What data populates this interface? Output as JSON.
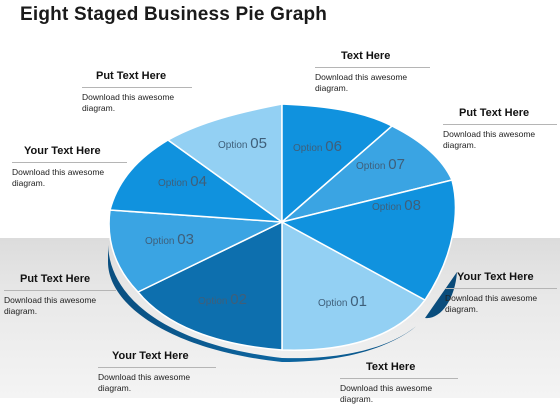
{
  "title": "Eight Staged Business Pie Graph",
  "colors": {
    "light": "#93d0f3",
    "mid": "#3aa4e3",
    "bright": "#1092de",
    "dark": "#0d6fae"
  },
  "callouts": [
    {
      "heading": "Text Here",
      "desc": "Download this awesome diagram."
    },
    {
      "heading": "Put Text Here",
      "desc": "Download this awesome diagram."
    },
    {
      "heading": "Your Text Here",
      "desc": "Download this awesome diagram."
    },
    {
      "heading": "Text Here",
      "desc": "Download this awesome diagram."
    },
    {
      "heading": "Your Text Here",
      "desc": "Download this awesome diagram."
    },
    {
      "heading": "Put Text Here",
      "desc": "Download this awesome diagram."
    },
    {
      "heading": "Your Text Here",
      "desc": "Download this awesome diagram."
    },
    {
      "heading": "Put Text Here",
      "desc": "Download this awesome diagram."
    }
  ],
  "slices": [
    {
      "label": "Option",
      "number": "01",
      "color": "light"
    },
    {
      "label": "Option",
      "number": "02",
      "color": "dark"
    },
    {
      "label": "Option",
      "number": "03",
      "color": "mid"
    },
    {
      "label": "Option",
      "number": "04",
      "color": "bright"
    },
    {
      "label": "Option",
      "number": "05",
      "color": "light"
    },
    {
      "label": "Option",
      "number": "06",
      "color": "bright"
    },
    {
      "label": "Option",
      "number": "07",
      "color": "mid"
    },
    {
      "label": "Option",
      "number": "08",
      "color": "bright"
    }
  ]
}
